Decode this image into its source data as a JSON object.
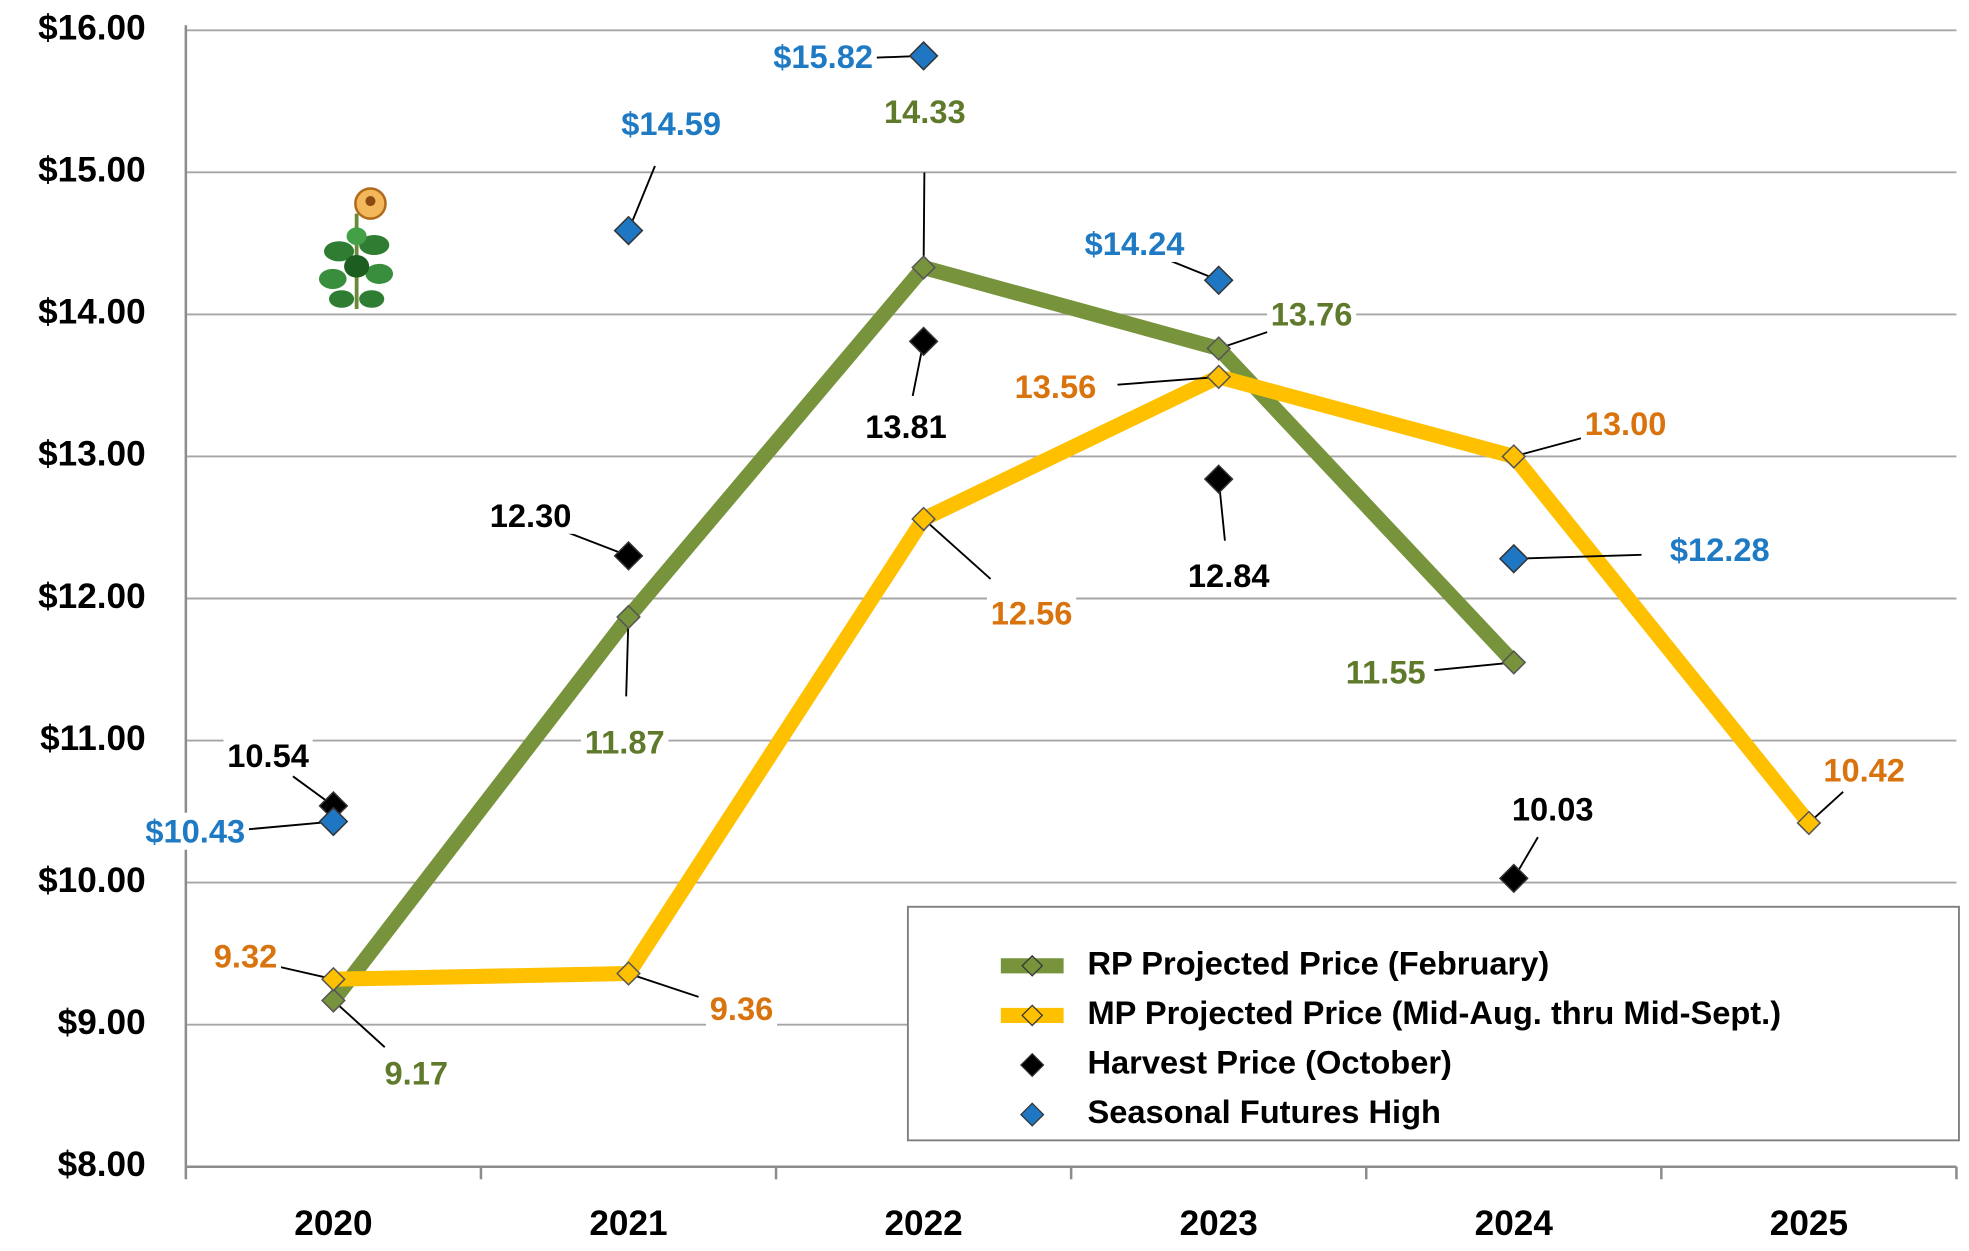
{
  "chart_data": {
    "type": "line",
    "categories": [
      "2020",
      "2021",
      "2022",
      "2023",
      "2024",
      "2025"
    ],
    "ylim": [
      8,
      16
    ],
    "yticks": [
      {
        "value": 8,
        "label": "$8.00"
      },
      {
        "value": 9,
        "label": "$9.00"
      },
      {
        "value": 10,
        "label": "$10.00"
      },
      {
        "value": 11,
        "label": "$11.00"
      },
      {
        "value": 12,
        "label": "$12.00"
      },
      {
        "value": 13,
        "label": "$13.00"
      },
      {
        "value": 14,
        "label": "$14.00"
      },
      {
        "value": 15,
        "label": "$15.00"
      },
      {
        "value": 16,
        "label": "$16.00"
      }
    ],
    "grid": true,
    "legend": "bottom-right",
    "series": [
      {
        "name": "RP Projected Price (February)",
        "color": "#77933c",
        "label_color": "#5e7a2a",
        "style": "line",
        "values": [
          9.17,
          11.87,
          14.33,
          13.76,
          11.55,
          null
        ]
      },
      {
        "name": "MP Projected Price (Mid-Aug. thru Mid-Sept.)",
        "color": "#ffc000",
        "label_color": "#d9730d",
        "style": "line",
        "values": [
          9.32,
          9.36,
          12.56,
          13.56,
          13,
          10.42
        ],
        "value_labels": [
          "9.32",
          "9.36",
          "12.56",
          "13.56",
          "13.00",
          "10.42"
        ]
      },
      {
        "name": "Harvest Price (October)",
        "color": "#000000",
        "label_color": "#000000",
        "style": "markers",
        "values": [
          10.54,
          12.3,
          13.81,
          12.84,
          10.03,
          null
        ],
        "value_labels": [
          "10.54",
          "12.30",
          "13.81",
          "12.84",
          "10.03",
          null
        ]
      },
      {
        "name": "Seasonal Futures High",
        "color": "#1f77c4",
        "label_color": "#1f7ac4",
        "style": "markers",
        "values": [
          10.43,
          14.59,
          15.82,
          14.24,
          12.28,
          null
        ],
        "value_labels": [
          "$10.43",
          "$14.59",
          "$15.82",
          "$14.24",
          "$12.28",
          null
        ]
      }
    ]
  }
}
